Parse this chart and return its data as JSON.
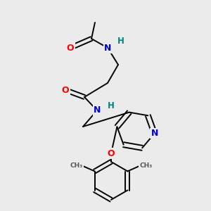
{
  "background_color": "#ebebeb",
  "bond_color": "#000000",
  "bond_width": 1.4,
  "atom_colors": {
    "O": "#ff0000",
    "N": "#0000cc",
    "H": "#008080",
    "C": "#000000"
  },
  "font_size_atoms": 9,
  "font_size_H": 8.5
}
